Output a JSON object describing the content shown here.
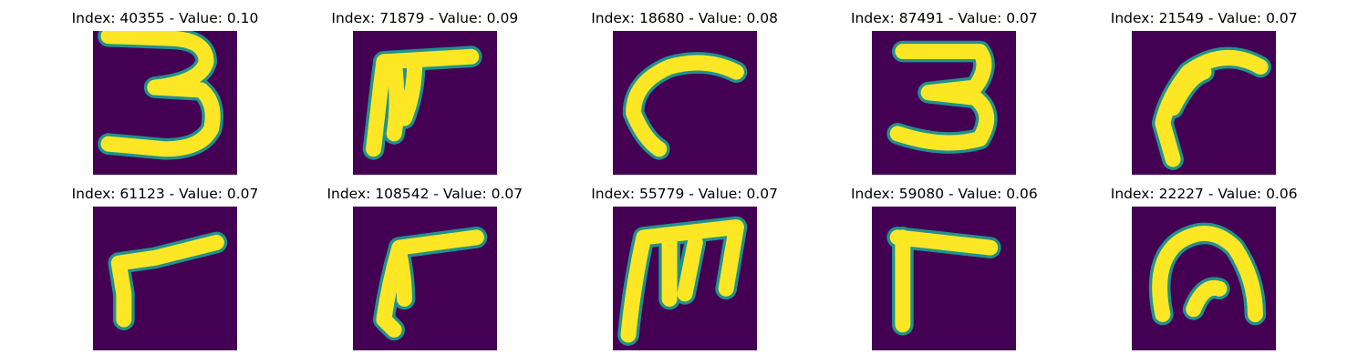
{
  "panels": [
    {
      "title": "Index: 40355 - Value: 0.10",
      "glyph": "digit-three-icon"
    },
    {
      "title": "Index: 71879 - Value: 0.09",
      "glyph": "pi-shape-icon"
    },
    {
      "title": "Index: 18680 - Value: 0.08",
      "glyph": "hook-curve-icon"
    },
    {
      "title": "Index: 87491 - Value: 0.07",
      "glyph": "digit-three-icon"
    },
    {
      "title": "Index: 21549 - Value: 0.07",
      "glyph": "hook-stroke-icon"
    },
    {
      "title": "Index: 61123 - Value: 0.07",
      "glyph": "gamma-stroke-icon"
    },
    {
      "title": "Index: 108542 - Value: 0.07",
      "glyph": "gamma-stroke-icon"
    },
    {
      "title": "Index: 55779 - Value: 0.07",
      "glyph": "m-shape-icon"
    },
    {
      "title": "Index: 59080 - Value: 0.06",
      "glyph": "gamma-stroke-icon"
    },
    {
      "title": "Index: 22227 - Value: 0.06",
      "glyph": "arch-shape-icon"
    }
  ],
  "colors": {
    "background": "#440154",
    "stroke_core": "#fde725",
    "stroke_edge": "#21918c"
  }
}
